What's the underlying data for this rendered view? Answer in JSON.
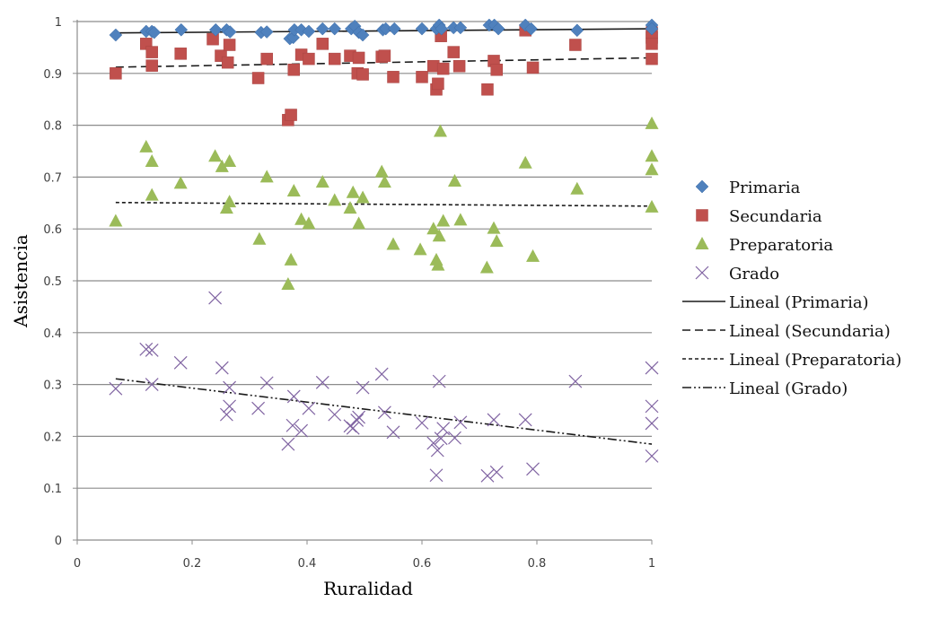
{
  "chart_data": {
    "type": "scatter",
    "title": "",
    "xlabel": "Ruralidad",
    "ylabel": "Asistencia",
    "xlim": [
      0,
      1
    ],
    "ylim": [
      0,
      1
    ],
    "x_ticks": [
      "0",
      "0.2",
      "0.4",
      "0.6",
      "0.8",
      "1"
    ],
    "y_ticks": [
      "0",
      "0.1",
      "0.2",
      "0.3",
      "0.4",
      "0.5",
      "0.6",
      "0.7",
      "0.8",
      "0.9",
      "1"
    ],
    "grid": "horizontal",
    "legend_position": "right",
    "series": [
      {
        "name": "Primaria",
        "marker": "diamond",
        "color": "#4F81BD",
        "points": [
          [
            0.067,
            0.974
          ],
          [
            0.12,
            0.981
          ],
          [
            0.13,
            0.981
          ],
          [
            0.134,
            0.979
          ],
          [
            0.181,
            0.984
          ],
          [
            0.241,
            0.984
          ],
          [
            0.26,
            0.984
          ],
          [
            0.266,
            0.98
          ],
          [
            0.32,
            0.979
          ],
          [
            0.33,
            0.98
          ],
          [
            0.37,
            0.967
          ],
          [
            0.376,
            0.969
          ],
          [
            0.378,
            0.984
          ],
          [
            0.39,
            0.984
          ],
          [
            0.403,
            0.981
          ],
          [
            0.427,
            0.986
          ],
          [
            0.448,
            0.986
          ],
          [
            0.477,
            0.986
          ],
          [
            0.483,
            0.991
          ],
          [
            0.49,
            0.979
          ],
          [
            0.497,
            0.974
          ],
          [
            0.532,
            0.984
          ],
          [
            0.537,
            0.986
          ],
          [
            0.552,
            0.986
          ],
          [
            0.6,
            0.986
          ],
          [
            0.625,
            0.986
          ],
          [
            0.63,
            0.993
          ],
          [
            0.634,
            0.986
          ],
          [
            0.655,
            0.988
          ],
          [
            0.667,
            0.988
          ],
          [
            0.717,
            0.993
          ],
          [
            0.726,
            0.993
          ],
          [
            0.733,
            0.986
          ],
          [
            0.78,
            0.993
          ],
          [
            0.79,
            0.986
          ],
          [
            0.87,
            0.983
          ],
          [
            1.0,
            0.993
          ],
          [
            1.0,
            0.986
          ]
        ]
      },
      {
        "name": "Secundaria",
        "marker": "square",
        "color": "#C0504D",
        "points": [
          [
            0.067,
            0.9
          ],
          [
            0.12,
            0.957
          ],
          [
            0.13,
            0.941
          ],
          [
            0.13,
            0.915
          ],
          [
            0.18,
            0.938
          ],
          [
            0.236,
            0.966
          ],
          [
            0.25,
            0.934
          ],
          [
            0.262,
            0.921
          ],
          [
            0.265,
            0.955
          ],
          [
            0.315,
            0.891
          ],
          [
            0.33,
            0.928
          ],
          [
            0.367,
            0.81
          ],
          [
            0.372,
            0.82
          ],
          [
            0.377,
            0.907
          ],
          [
            0.39,
            0.936
          ],
          [
            0.403,
            0.928
          ],
          [
            0.427,
            0.957
          ],
          [
            0.448,
            0.928
          ],
          [
            0.475,
            0.934
          ],
          [
            0.488,
            0.9
          ],
          [
            0.49,
            0.93
          ],
          [
            0.497,
            0.898
          ],
          [
            0.53,
            0.932
          ],
          [
            0.535,
            0.934
          ],
          [
            0.55,
            0.893
          ],
          [
            0.6,
            0.893
          ],
          [
            0.62,
            0.914
          ],
          [
            0.625,
            0.869
          ],
          [
            0.628,
            0.88
          ],
          [
            0.633,
            0.972
          ],
          [
            0.637,
            0.909
          ],
          [
            0.655,
            0.941
          ],
          [
            0.665,
            0.914
          ],
          [
            0.714,
            0.869
          ],
          [
            0.725,
            0.924
          ],
          [
            0.73,
            0.907
          ],
          [
            0.78,
            0.983
          ],
          [
            0.793,
            0.911
          ],
          [
            0.867,
            0.955
          ],
          [
            1.0,
            0.979
          ],
          [
            1.0,
            0.969
          ],
          [
            1.0,
            0.957
          ],
          [
            1.0,
            0.928
          ]
        ]
      },
      {
        "name": "Preparatoria",
        "marker": "triangle",
        "color": "#9BBB59",
        "points": [
          [
            0.067,
            0.615
          ],
          [
            0.12,
            0.758
          ],
          [
            0.13,
            0.73
          ],
          [
            0.13,
            0.665
          ],
          [
            0.18,
            0.688
          ],
          [
            0.24,
            0.74
          ],
          [
            0.252,
            0.72
          ],
          [
            0.26,
            0.64
          ],
          [
            0.265,
            0.73
          ],
          [
            0.265,
            0.652
          ],
          [
            0.317,
            0.58
          ],
          [
            0.33,
            0.7
          ],
          [
            0.367,
            0.493
          ],
          [
            0.372,
            0.54
          ],
          [
            0.377,
            0.673
          ],
          [
            0.39,
            0.618
          ],
          [
            0.403,
            0.61
          ],
          [
            0.427,
            0.69
          ],
          [
            0.448,
            0.655
          ],
          [
            0.475,
            0.64
          ],
          [
            0.48,
            0.67
          ],
          [
            0.49,
            0.61
          ],
          [
            0.497,
            0.66
          ],
          [
            0.53,
            0.71
          ],
          [
            0.535,
            0.69
          ],
          [
            0.55,
            0.57
          ],
          [
            0.597,
            0.56
          ],
          [
            0.62,
            0.6
          ],
          [
            0.625,
            0.54
          ],
          [
            0.628,
            0.53
          ],
          [
            0.63,
            0.586
          ],
          [
            0.632,
            0.788
          ],
          [
            0.637,
            0.615
          ],
          [
            0.657,
            0.692
          ],
          [
            0.667,
            0.617
          ],
          [
            0.713,
            0.525
          ],
          [
            0.725,
            0.601
          ],
          [
            0.73,
            0.576
          ],
          [
            0.78,
            0.727
          ],
          [
            0.793,
            0.547
          ],
          [
            0.87,
            0.677
          ],
          [
            1.0,
            0.803
          ],
          [
            1.0,
            0.74
          ],
          [
            1.0,
            0.714
          ],
          [
            1.0,
            0.642
          ]
        ]
      },
      {
        "name": "Grado",
        "marker": "x",
        "color": "#8064A2",
        "points": [
          [
            0.067,
            0.292
          ],
          [
            0.12,
            0.368
          ],
          [
            0.13,
            0.366
          ],
          [
            0.13,
            0.3
          ],
          [
            0.18,
            0.342
          ],
          [
            0.24,
            0.467
          ],
          [
            0.252,
            0.332
          ],
          [
            0.26,
            0.242
          ],
          [
            0.265,
            0.258
          ],
          [
            0.265,
            0.294
          ],
          [
            0.315,
            0.254
          ],
          [
            0.33,
            0.303
          ],
          [
            0.367,
            0.185
          ],
          [
            0.375,
            0.221
          ],
          [
            0.377,
            0.277
          ],
          [
            0.39,
            0.211
          ],
          [
            0.403,
            0.254
          ],
          [
            0.427,
            0.304
          ],
          [
            0.448,
            0.242
          ],
          [
            0.475,
            0.22
          ],
          [
            0.48,
            0.216
          ],
          [
            0.487,
            0.231
          ],
          [
            0.49,
            0.237
          ],
          [
            0.497,
            0.294
          ],
          [
            0.53,
            0.32
          ],
          [
            0.535,
            0.246
          ],
          [
            0.55,
            0.208
          ],
          [
            0.6,
            0.226
          ],
          [
            0.62,
            0.187
          ],
          [
            0.625,
            0.125
          ],
          [
            0.627,
            0.173
          ],
          [
            0.63,
            0.306
          ],
          [
            0.633,
            0.196
          ],
          [
            0.637,
            0.215
          ],
          [
            0.657,
            0.197
          ],
          [
            0.667,
            0.227
          ],
          [
            0.714,
            0.124
          ],
          [
            0.725,
            0.232
          ],
          [
            0.73,
            0.131
          ],
          [
            0.78,
            0.232
          ],
          [
            0.793,
            0.137
          ],
          [
            0.867,
            0.306
          ],
          [
            1.0,
            0.332
          ],
          [
            1.0,
            0.258
          ],
          [
            1.0,
            0.225
          ],
          [
            1.0,
            0.162
          ]
        ]
      }
    ],
    "trendlines": [
      {
        "name": "Lineal (Primaria)",
        "style": "solid",
        "x": [
          0.067,
          1.0
        ],
        "y": [
          0.978,
          0.986
        ]
      },
      {
        "name": "Lineal (Secundaria)",
        "style": "dashed",
        "x": [
          0.067,
          1.0
        ],
        "y": [
          0.912,
          0.93
        ]
      },
      {
        "name": "Lineal (Preparatoria)",
        "style": "dotted",
        "x": [
          0.067,
          1.0
        ],
        "y": [
          0.651,
          0.644
        ]
      },
      {
        "name": "Lineal (Grado)",
        "style": "dash-dot",
        "x": [
          0.067,
          1.0
        ],
        "y": [
          0.311,
          0.185
        ]
      }
    ],
    "legend": [
      "Primaria",
      "Secundaria",
      "Preparatoria",
      "Grado",
      "Lineal (Primaria)",
      "Lineal (Secundaria)",
      "Lineal (Preparatoria)",
      "Lineal (Grado)"
    ]
  }
}
